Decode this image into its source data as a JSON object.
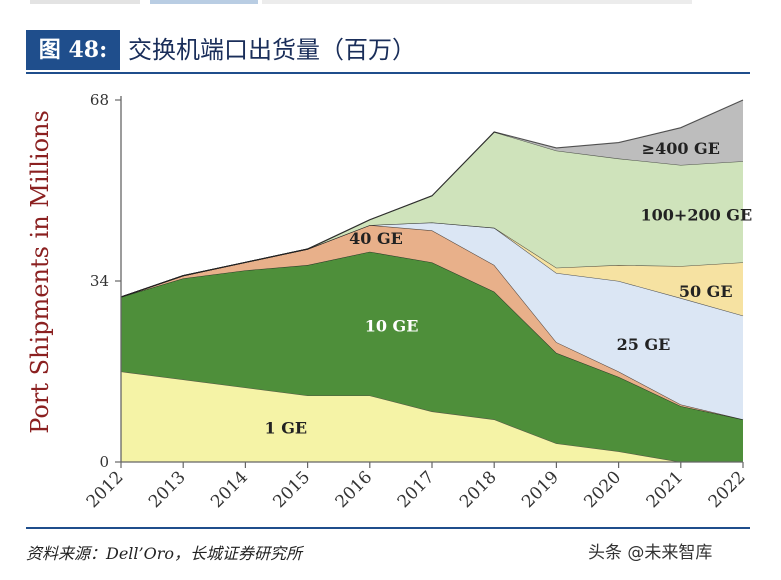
{
  "figure": {
    "label": "图 48:",
    "title": "交换机端口出货量（百万）"
  },
  "source": "资料来源：Dell’Oro，长城证券研究所",
  "watermark": "头条 @未来智库",
  "colors": {
    "1 GE": "#f5f3a6",
    "10 GE": "#4e8f3a",
    "40 GE": "#e8b08a",
    "25 GE": "#dbe6f4",
    "50 GE": "#f6e2a2",
    "100+200 GE": "#cfe3bb",
    "≥400 GE": "#bdbdbd",
    "title_bar": "#1f4e8c"
  },
  "chart_data": {
    "type": "area",
    "stacked": true,
    "ylabel": "Port Shipments in Millions",
    "xlabel": "",
    "ylim": [
      0,
      68
    ],
    "yticks": [
      0,
      34,
      68
    ],
    "x": [
      "2012",
      "2013",
      "2014",
      "2015",
      "2016",
      "2017",
      "2018",
      "2019",
      "2020",
      "2021",
      "2022"
    ],
    "series": [
      {
        "name": "1 GE",
        "values": [
          17,
          15.5,
          14,
          12.5,
          12.5,
          9.5,
          8,
          3.5,
          2,
          0,
          0
        ]
      },
      {
        "name": "10 GE",
        "values": [
          14,
          19,
          22,
          24.5,
          27,
          28,
          24,
          17,
          14,
          10.5,
          8
        ]
      },
      {
        "name": "40 GE",
        "values": [
          0,
          0.5,
          1.5,
          3,
          5,
          6,
          5,
          2,
          1,
          0.3,
          0
        ]
      },
      {
        "name": "25 GE",
        "values": [
          0,
          0,
          0,
          0,
          0,
          1.5,
          7,
          13,
          17,
          20,
          19.5
        ]
      },
      {
        "name": "50 GE",
        "values": [
          0,
          0,
          0,
          0,
          0,
          0,
          0,
          1,
          3,
          6,
          10
        ]
      },
      {
        "name": "100+200 GE",
        "values": [
          0,
          0,
          0,
          0,
          1,
          5,
          18,
          22,
          20,
          19,
          19
        ]
      },
      {
        "name": "≥400 GE",
        "values": [
          0,
          0,
          0,
          0,
          0,
          0,
          0,
          0.5,
          3,
          7,
          11.5
        ]
      }
    ],
    "annotations": [
      "1 GE",
      "10 GE",
      "40 GE",
      "25 GE",
      "50 GE",
      "100+200 GE",
      "≥400 GE"
    ],
    "legend": "none",
    "grid": false
  }
}
